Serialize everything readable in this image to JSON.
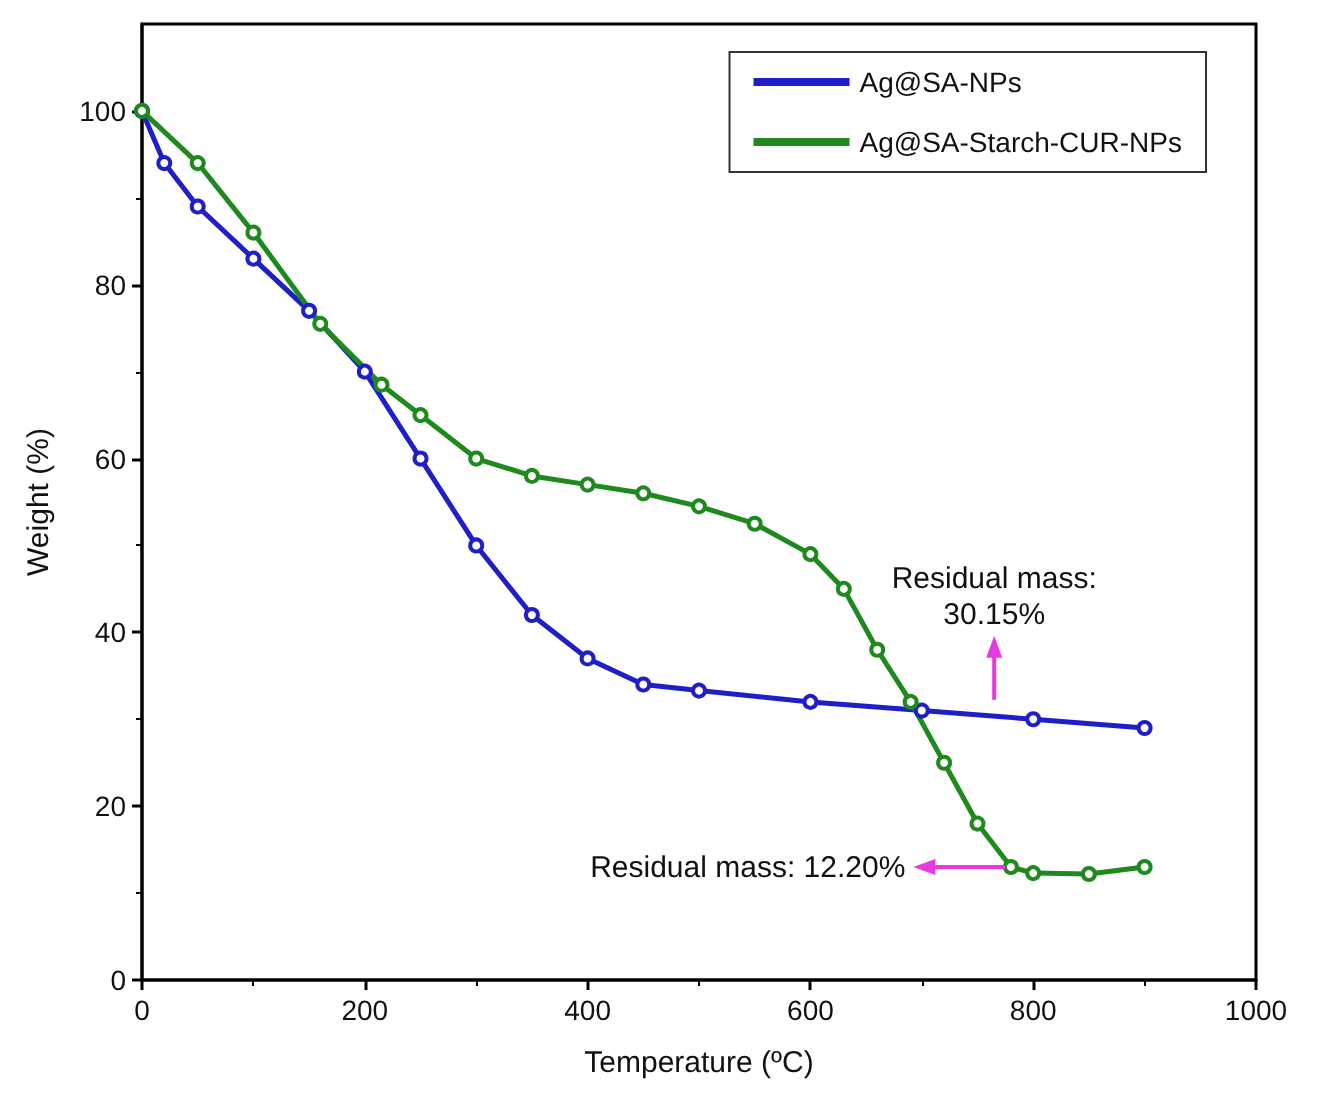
{
  "chart_data": {
    "type": "line",
    "xlabel": "Temperature (ºC)",
    "ylabel": "Weight (%)",
    "xlim": [
      0,
      1000
    ],
    "xticks": [
      0,
      200,
      400,
      600,
      800,
      1000
    ],
    "ylim": [
      0,
      110
    ],
    "yticks": [
      0,
      20,
      40,
      60,
      80,
      100
    ],
    "grid": false,
    "legend": "top right",
    "marker": "circle",
    "line_style": "solid",
    "series": [
      {
        "name": "Ag@SA-NPs",
        "color": "#1f1fc8",
        "x": [
          0,
          20,
          50,
          100,
          150,
          200,
          250,
          300,
          350,
          400,
          450,
          500,
          600,
          700,
          800,
          900
        ],
        "values": [
          100,
          94,
          89,
          83,
          77,
          70,
          60,
          50,
          42,
          37,
          34,
          33.3,
          32,
          31,
          30,
          29
        ]
      },
      {
        "name": "Ag@SA-Starch-CUR-NPs",
        "color": "#1e8a1e",
        "x": [
          0,
          50,
          100,
          160,
          215,
          250,
          300,
          350,
          400,
          450,
          500,
          550,
          600,
          630,
          660,
          690,
          720,
          750,
          780,
          800,
          850,
          900
        ],
        "values": [
          100,
          94,
          86,
          75.5,
          68.5,
          65,
          60,
          58,
          57,
          56,
          54.5,
          52.5,
          49,
          45,
          38,
          32,
          25,
          18,
          13,
          12.3,
          12.2,
          13
        ]
      }
    ],
    "annotations": [
      {
        "text": "Residual mass:\n30.15%",
        "x": 765,
        "y": 30.4
      },
      {
        "text": "Residual mass: 12.20%",
        "x": 775,
        "y": 13
      }
    ]
  }
}
